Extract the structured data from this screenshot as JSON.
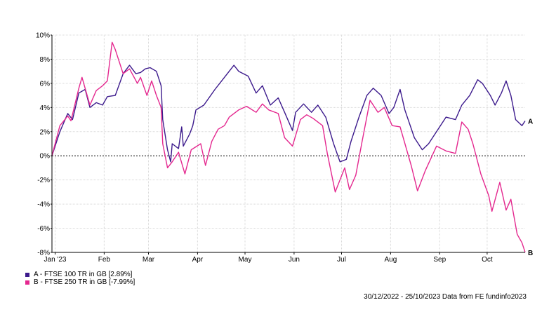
{
  "chart_data": {
    "type": "line",
    "x_axis": {
      "type": "date",
      "range": [
        "2022-12-30",
        "2023-10-25"
      ],
      "tick_labels": [
        {
          "label": "Jan '23",
          "date": "2023-01-01"
        },
        {
          "label": "Feb",
          "date": "2023-02-01"
        },
        {
          "label": "Mar",
          "date": "2023-03-01"
        },
        {
          "label": "Apr",
          "date": "2023-04-01"
        },
        {
          "label": "May",
          "date": "2023-05-01"
        },
        {
          "label": "Jun",
          "date": "2023-06-01"
        },
        {
          "label": "Jul",
          "date": "2023-07-01"
        },
        {
          "label": "Aug",
          "date": "2023-08-01"
        },
        {
          "label": "Sep",
          "date": "2023-09-01"
        },
        {
          "label": "Oct",
          "date": "2023-10-01"
        }
      ]
    },
    "y_axis": {
      "ylim": [
        -8,
        10
      ],
      "unit": "%",
      "ticks": [
        10,
        8,
        6,
        4,
        2,
        0,
        -2,
        -4,
        -6,
        -8
      ],
      "tick_labels": [
        "10%",
        "8%",
        "6%",
        "4%",
        "2%",
        "0%",
        "-2%",
        "-4%",
        "-6%",
        "-8%"
      ]
    },
    "grid": true,
    "zero_line": "dashed",
    "legend_placement": "bottom-left",
    "series": [
      {
        "name": "A - FTSE 100 TR in GB [2.89%]",
        "end_label": "A",
        "color": "#3c1a8c",
        "points": [
          [
            "2022-12-30",
            0.0
          ],
          [
            "2023-01-04",
            2.0
          ],
          [
            "2023-01-09",
            3.5
          ],
          [
            "2023-01-12",
            3.0
          ],
          [
            "2023-01-16",
            5.2
          ],
          [
            "2023-01-20",
            5.5
          ],
          [
            "2023-01-23",
            4.0
          ],
          [
            "2023-01-27",
            4.4
          ],
          [
            "2023-01-31",
            4.2
          ],
          [
            "2023-02-03",
            4.9
          ],
          [
            "2023-02-08",
            5.0
          ],
          [
            "2023-02-13",
            6.8
          ],
          [
            "2023-02-17",
            7.5
          ],
          [
            "2023-02-21",
            6.8
          ],
          [
            "2023-02-24",
            6.9
          ],
          [
            "2023-02-27",
            7.2
          ],
          [
            "2023-03-02",
            7.3
          ],
          [
            "2023-03-06",
            7.0
          ],
          [
            "2023-03-09",
            5.8
          ],
          [
            "2023-03-10",
            3.0
          ],
          [
            "2023-03-13",
            0.5
          ],
          [
            "2023-03-15",
            -0.5
          ],
          [
            "2023-03-16",
            1.0
          ],
          [
            "2023-03-20",
            0.6
          ],
          [
            "2023-03-22",
            2.4
          ],
          [
            "2023-03-23",
            0.8
          ],
          [
            "2023-03-27",
            1.8
          ],
          [
            "2023-03-29",
            2.5
          ],
          [
            "2023-03-31",
            3.8
          ],
          [
            "2023-04-05",
            4.2
          ],
          [
            "2023-04-12",
            5.5
          ],
          [
            "2023-04-18",
            6.5
          ],
          [
            "2023-04-24",
            7.5
          ],
          [
            "2023-04-27",
            7.0
          ],
          [
            "2023-05-03",
            6.6
          ],
          [
            "2023-05-08",
            5.2
          ],
          [
            "2023-05-12",
            5.8
          ],
          [
            "2023-05-17",
            4.2
          ],
          [
            "2023-05-22",
            4.8
          ],
          [
            "2023-05-26",
            3.6
          ],
          [
            "2023-05-31",
            2.1
          ],
          [
            "2023-06-02",
            3.6
          ],
          [
            "2023-06-07",
            4.3
          ],
          [
            "2023-06-12",
            3.6
          ],
          [
            "2023-06-16",
            4.2
          ],
          [
            "2023-06-21",
            3.2
          ],
          [
            "2023-06-26",
            1.0
          ],
          [
            "2023-06-30",
            -0.5
          ],
          [
            "2023-07-04",
            -0.3
          ],
          [
            "2023-07-07",
            1.2
          ],
          [
            "2023-07-12",
            3.2
          ],
          [
            "2023-07-17",
            5.0
          ],
          [
            "2023-07-21",
            5.6
          ],
          [
            "2023-07-26",
            5.0
          ],
          [
            "2023-07-31",
            3.5
          ],
          [
            "2023-08-03",
            4.0
          ],
          [
            "2023-08-07",
            5.5
          ],
          [
            "2023-08-10",
            3.8
          ],
          [
            "2023-08-16",
            1.5
          ],
          [
            "2023-08-21",
            0.5
          ],
          [
            "2023-08-25",
            1.0
          ],
          [
            "2023-08-30",
            2.0
          ],
          [
            "2023-09-05",
            3.2
          ],
          [
            "2023-09-11",
            3.0
          ],
          [
            "2023-09-15",
            4.2
          ],
          [
            "2023-09-20",
            5.0
          ],
          [
            "2023-09-25",
            6.3
          ],
          [
            "2023-09-28",
            6.0
          ],
          [
            "2023-10-03",
            5.0
          ],
          [
            "2023-10-06",
            4.2
          ],
          [
            "2023-10-10",
            5.2
          ],
          [
            "2023-10-13",
            6.2
          ],
          [
            "2023-10-16",
            5.0
          ],
          [
            "2023-10-19",
            3.0
          ],
          [
            "2023-10-23",
            2.5
          ],
          [
            "2023-10-25",
            2.89
          ]
        ]
      },
      {
        "name": "B - FTSE 250 TR in GB [-7.99%]",
        "end_label": "B",
        "color": "#e4288f",
        "points": [
          [
            "2022-12-30",
            0.0
          ],
          [
            "2023-01-04",
            2.5
          ],
          [
            "2023-01-09",
            3.3
          ],
          [
            "2023-01-11",
            2.9
          ],
          [
            "2023-01-16",
            5.6
          ],
          [
            "2023-01-18",
            6.5
          ],
          [
            "2023-01-23",
            4.2
          ],
          [
            "2023-01-27",
            5.4
          ],
          [
            "2023-01-31",
            5.8
          ],
          [
            "2023-02-03",
            6.2
          ],
          [
            "2023-02-06",
            9.4
          ],
          [
            "2023-02-08",
            8.8
          ],
          [
            "2023-02-13",
            6.8
          ],
          [
            "2023-02-17",
            7.2
          ],
          [
            "2023-02-22",
            6.0
          ],
          [
            "2023-02-24",
            6.5
          ],
          [
            "2023-02-28",
            5.0
          ],
          [
            "2023-03-03",
            6.2
          ],
          [
            "2023-03-06",
            5.0
          ],
          [
            "2023-03-09",
            4.0
          ],
          [
            "2023-03-10",
            1.0
          ],
          [
            "2023-03-13",
            -1.0
          ],
          [
            "2023-03-16",
            -0.5
          ],
          [
            "2023-03-20",
            0.3
          ],
          [
            "2023-03-24",
            -1.5
          ],
          [
            "2023-03-28",
            0.5
          ],
          [
            "2023-04-03",
            1.0
          ],
          [
            "2023-04-06",
            -0.8
          ],
          [
            "2023-04-10",
            1.2
          ],
          [
            "2023-04-14",
            2.2
          ],
          [
            "2023-04-18",
            2.5
          ],
          [
            "2023-04-21",
            3.2
          ],
          [
            "2023-04-27",
            3.8
          ],
          [
            "2023-05-02",
            4.1
          ],
          [
            "2023-05-08",
            3.6
          ],
          [
            "2023-05-12",
            4.3
          ],
          [
            "2023-05-16",
            3.8
          ],
          [
            "2023-05-22",
            3.5
          ],
          [
            "2023-05-26",
            1.5
          ],
          [
            "2023-05-31",
            0.8
          ],
          [
            "2023-06-05",
            3.0
          ],
          [
            "2023-06-09",
            3.4
          ],
          [
            "2023-06-13",
            3.1
          ],
          [
            "2023-06-19",
            2.5
          ],
          [
            "2023-06-22",
            0.2
          ],
          [
            "2023-06-27",
            -3.0
          ],
          [
            "2023-07-03",
            -1.0
          ],
          [
            "2023-07-06",
            -2.8
          ],
          [
            "2023-07-10",
            -1.6
          ],
          [
            "2023-07-14",
            1.2
          ],
          [
            "2023-07-19",
            4.6
          ],
          [
            "2023-07-24",
            3.6
          ],
          [
            "2023-07-28",
            4.0
          ],
          [
            "2023-08-02",
            2.5
          ],
          [
            "2023-08-07",
            2.4
          ],
          [
            "2023-08-14",
            -0.8
          ],
          [
            "2023-08-18",
            -2.9
          ],
          [
            "2023-08-23",
            -1.2
          ],
          [
            "2023-08-30",
            0.8
          ],
          [
            "2023-09-05",
            0.4
          ],
          [
            "2023-09-11",
            0.2
          ],
          [
            "2023-09-15",
            2.8
          ],
          [
            "2023-09-19",
            2.2
          ],
          [
            "2023-09-22",
            1.0
          ],
          [
            "2023-09-27",
            -1.5
          ],
          [
            "2023-10-02",
            -3.3
          ],
          [
            "2023-10-04",
            -4.6
          ],
          [
            "2023-10-09",
            -2.2
          ],
          [
            "2023-10-13",
            -4.5
          ],
          [
            "2023-10-16",
            -3.6
          ],
          [
            "2023-10-20",
            -6.5
          ],
          [
            "2023-10-23",
            -7.2
          ],
          [
            "2023-10-25",
            -7.99
          ]
        ]
      }
    ],
    "source_text": "30/12/2022 - 25/10/2023 Data from FE fundinfo2023"
  }
}
